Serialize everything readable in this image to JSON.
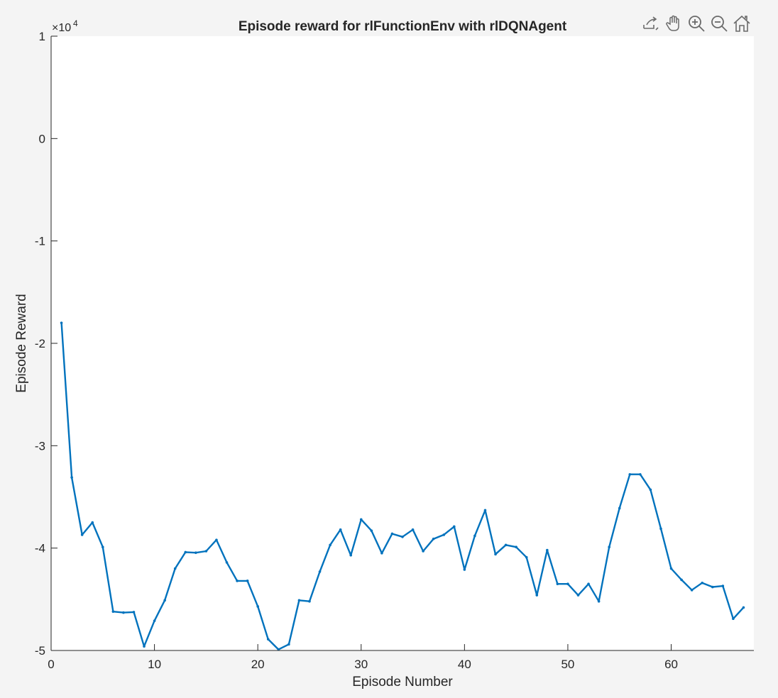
{
  "toolbar": {
    "icons": [
      "export-icon",
      "pan-icon",
      "zoom-in-icon",
      "zoom-out-icon",
      "home-icon"
    ]
  },
  "colors": {
    "background": "#f4f4f4",
    "axes_background": "#ffffff",
    "line": "#0072bd",
    "text": "#262626",
    "icon": "#6a6a6a"
  },
  "chart_data": {
    "type": "line",
    "title": "Episode reward for rlFunctionEnv with rlDQNAgent",
    "xlabel": "Episode Number",
    "ylabel": "Episode Reward",
    "y_exponent_base": "×10",
    "y_exponent_power": "4",
    "xlim": [
      0,
      68
    ],
    "ylim": [
      -50000,
      10000
    ],
    "xticks": [
      0,
      10,
      20,
      30,
      40,
      50,
      60
    ],
    "xtick_labels": [
      "0",
      "10",
      "20",
      "30",
      "40",
      "50",
      "60"
    ],
    "yticks": [
      10000,
      0,
      -10000,
      -20000,
      -30000,
      -40000,
      -50000
    ],
    "ytick_labels": [
      "1",
      "0",
      "-1",
      "-2",
      "-3",
      "-4",
      "-5"
    ],
    "grid": false,
    "legend": "none",
    "series": [
      {
        "x": [
          1,
          2,
          3,
          4,
          5,
          6,
          7,
          8,
          9,
          10,
          11,
          12,
          13,
          14,
          15,
          16,
          17,
          18,
          19,
          20,
          21,
          22,
          23,
          24,
          25,
          26,
          27,
          28,
          29,
          30,
          31,
          32,
          33,
          34,
          35,
          36,
          37,
          38,
          39,
          40,
          41,
          42,
          43,
          44,
          45,
          46,
          47,
          48,
          49,
          50,
          51,
          52,
          53,
          54,
          55,
          56,
          57,
          58,
          59,
          60,
          61,
          62,
          63,
          64,
          65,
          66,
          67
        ],
        "y": [
          -18000,
          -33100,
          -38700,
          -37500,
          -39900,
          -46200,
          -46300,
          -46250,
          -49600,
          -47100,
          -45100,
          -42000,
          -40400,
          -40450,
          -40300,
          -39200,
          -41400,
          -43200,
          -43200,
          -45700,
          -48900,
          -49900,
          -49400,
          -45100,
          -45200,
          -42300,
          -39700,
          -38200,
          -40700,
          -37200,
          -38300,
          -40500,
          -38600,
          -38900,
          -38200,
          -40300,
          -39100,
          -38700,
          -37900,
          -42100,
          -38800,
          -36300,
          -40600,
          -39700,
          -39900,
          -40900,
          -44600,
          -40200,
          -43500,
          -43500,
          -44600,
          -43500,
          -45200,
          -39900,
          -36100,
          -32800,
          -32800,
          -34300,
          -38100,
          -42000,
          -43100,
          -44100,
          -43400,
          -43800,
          -43700,
          -46900,
          -45800
        ]
      }
    ]
  }
}
